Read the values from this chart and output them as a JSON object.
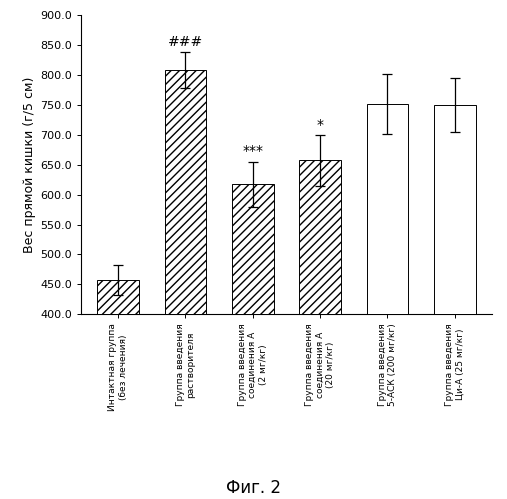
{
  "categories": [
    "Интактная группа\n(без лечения)",
    "Группа введения\nрастворителя",
    "Группа введения\nсоединения А\n(2 мг/кг)",
    "Группа введения\nсоединения А\n(20 мг/кг)",
    "Группа введения\n5-АСК (200 мг/кг)",
    "Группа введения\nЦи-А (25 мг/кг)"
  ],
  "values": [
    457.0,
    808.0,
    617.0,
    657.0,
    752.0,
    749.0
  ],
  "errors": [
    25.0,
    30.0,
    38.0,
    42.0,
    50.0,
    45.0
  ],
  "hatch_pattern": [
    "////",
    "////",
    "////",
    "////",
    "",
    ""
  ],
  "bar_facecolors": [
    "white",
    "white",
    "white",
    "white",
    "white",
    "white"
  ],
  "annotations": [
    "",
    "###",
    "***",
    "*",
    "",
    ""
  ],
  "ylabel": "Вес прямой кишки (г/5 см)",
  "ylim": [
    400.0,
    900.0
  ],
  "yticks": [
    400.0,
    450.0,
    500.0,
    550.0,
    600.0,
    650.0,
    700.0,
    750.0,
    800.0,
    850.0,
    900.0
  ],
  "figure_label": "Фиг. 2",
  "background_color": "#ffffff",
  "bar_edgecolor": "#000000",
  "annotation_fontsize": 10,
  "ylabel_fontsize": 9,
  "tick_fontsize": 8,
  "label_fontsize": 12
}
